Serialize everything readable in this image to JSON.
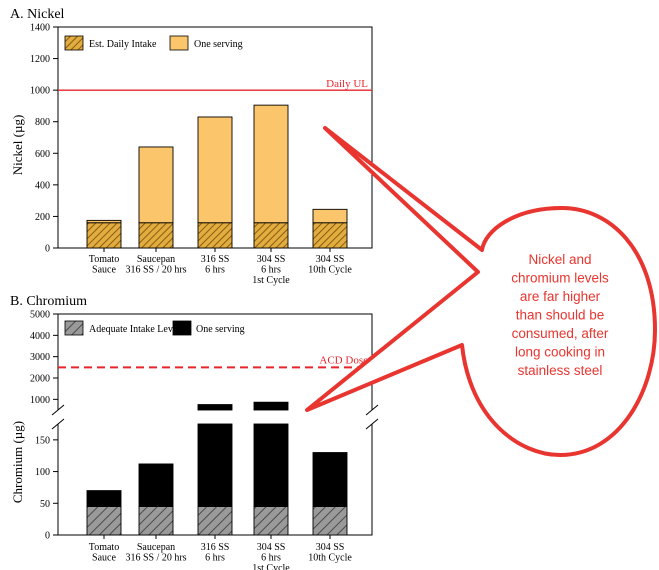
{
  "chart_data": [
    {
      "type": "bar",
      "title": "A. Nickel",
      "ylabel": "Nickel (µg)",
      "ylim": [
        0,
        1400
      ],
      "yticks": [
        "0",
        "200",
        "400",
        "600",
        "800",
        "1000",
        "1200",
        "1400"
      ],
      "categories": [
        [
          "Tomato",
          "Sauce"
        ],
        [
          "Saucepan",
          "316 SS / 20 hrs"
        ],
        [
          "316 SS",
          "6 hrs"
        ],
        [
          "304 SS",
          "6 hrs",
          "1st Cycle"
        ],
        [
          "304 SS",
          "10th Cycle"
        ]
      ],
      "stacked": true,
      "series": [
        {
          "name": "Est. Daily Intake",
          "pattern": "hatch",
          "values": [
            160,
            160,
            160,
            160,
            160
          ]
        },
        {
          "name": "One serving",
          "values": [
            15,
            480,
            670,
            745,
            85
          ]
        }
      ],
      "totals": [
        175,
        640,
        830,
        905,
        245
      ],
      "reference_line": {
        "label": "Daily UL",
        "value": 1000,
        "style": "solid"
      },
      "legend": "top-left",
      "colors": {
        "fill": "#fbc66b",
        "hatch_bg": "#e2ac3f",
        "hatch_line": "#6e4a08",
        "ref": "#e8252b"
      }
    },
    {
      "type": "bar",
      "title": "B. Chromium",
      "ylabel": "Chromium (µg)",
      "broken_axis": true,
      "lower_ylim": [
        0,
        175
      ],
      "lower_yticks": [
        "0",
        "50",
        "100",
        "150"
      ],
      "upper_ylim": [
        500,
        5000
      ],
      "upper_yticks": [
        "1000",
        "2000",
        "3000",
        "4000",
        "5000"
      ],
      "categories": [
        [
          "Tomato",
          "Sauce"
        ],
        [
          "Saucepan",
          "316 SS / 20 hrs"
        ],
        [
          "316 SS",
          "6 hrs"
        ],
        [
          "304 SS",
          "6 hrs",
          "1st Cycle"
        ],
        [
          "304 SS",
          "10th Cycle"
        ]
      ],
      "stacked": true,
      "series": [
        {
          "name": "Adequate Intake Level",
          "pattern": "hatch",
          "values": [
            45,
            45,
            45,
            45,
            45
          ]
        },
        {
          "name": "One serving",
          "values": [
            25,
            67,
            710,
            820,
            85
          ]
        }
      ],
      "totals": [
        70,
        112,
        755,
        865,
        130
      ],
      "reference_line": {
        "label": "ACD Dose",
        "value": 2500,
        "style": "dashed"
      },
      "legend": "top-left",
      "colors": {
        "fill": "#000000",
        "hatch_bg": "#999999",
        "hatch_line": "#444444",
        "ref": "#e8252b"
      }
    }
  ],
  "callout": {
    "text": [
      "Nickel and",
      "chromium levels",
      "are far higher",
      "than should be",
      "consumed, after",
      "long cooking in",
      "stainless steel"
    ],
    "fill": "#ffffff",
    "stroke": "#e8352f",
    "text_color": "#e8352f"
  }
}
